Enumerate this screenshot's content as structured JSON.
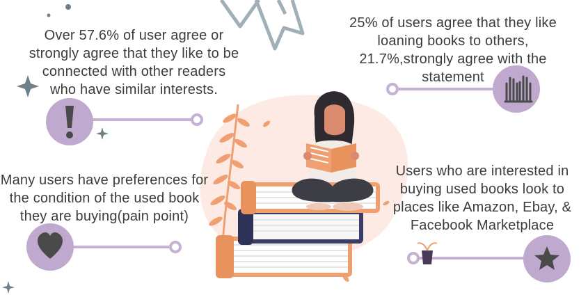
{
  "colors": {
    "lavender": "#bfa9cf",
    "connector": "#c4b1d4",
    "icon_dark": "#4a4a4a",
    "ribbon": "#9fb0b6",
    "text": "#3c3c3c",
    "orange": "#f0a070",
    "navy": "#3a3d66",
    "blush": "#fdeae4"
  },
  "callouts": [
    {
      "id": "connected-readers",
      "icon": "exclamation-icon",
      "text": "Over 57.6% of user agree or strongly agree that they like to be connected with other readers who have similar interests."
    },
    {
      "id": "loaning-books",
      "icon": "hands-icon",
      "text": "25% of users agree that they like loaning books to others, 21.7%,strongly agree with the statement"
    },
    {
      "id": "book-condition",
      "icon": "heart-icon",
      "text": "Many users have preferences for the condition of the used book they are buying(pain point)"
    },
    {
      "id": "buying-places",
      "icon": "star-icon",
      "text": "Users who are interested in buying used books look to places like Amazon, Ebay, & Facebook Marketplace"
    }
  ]
}
